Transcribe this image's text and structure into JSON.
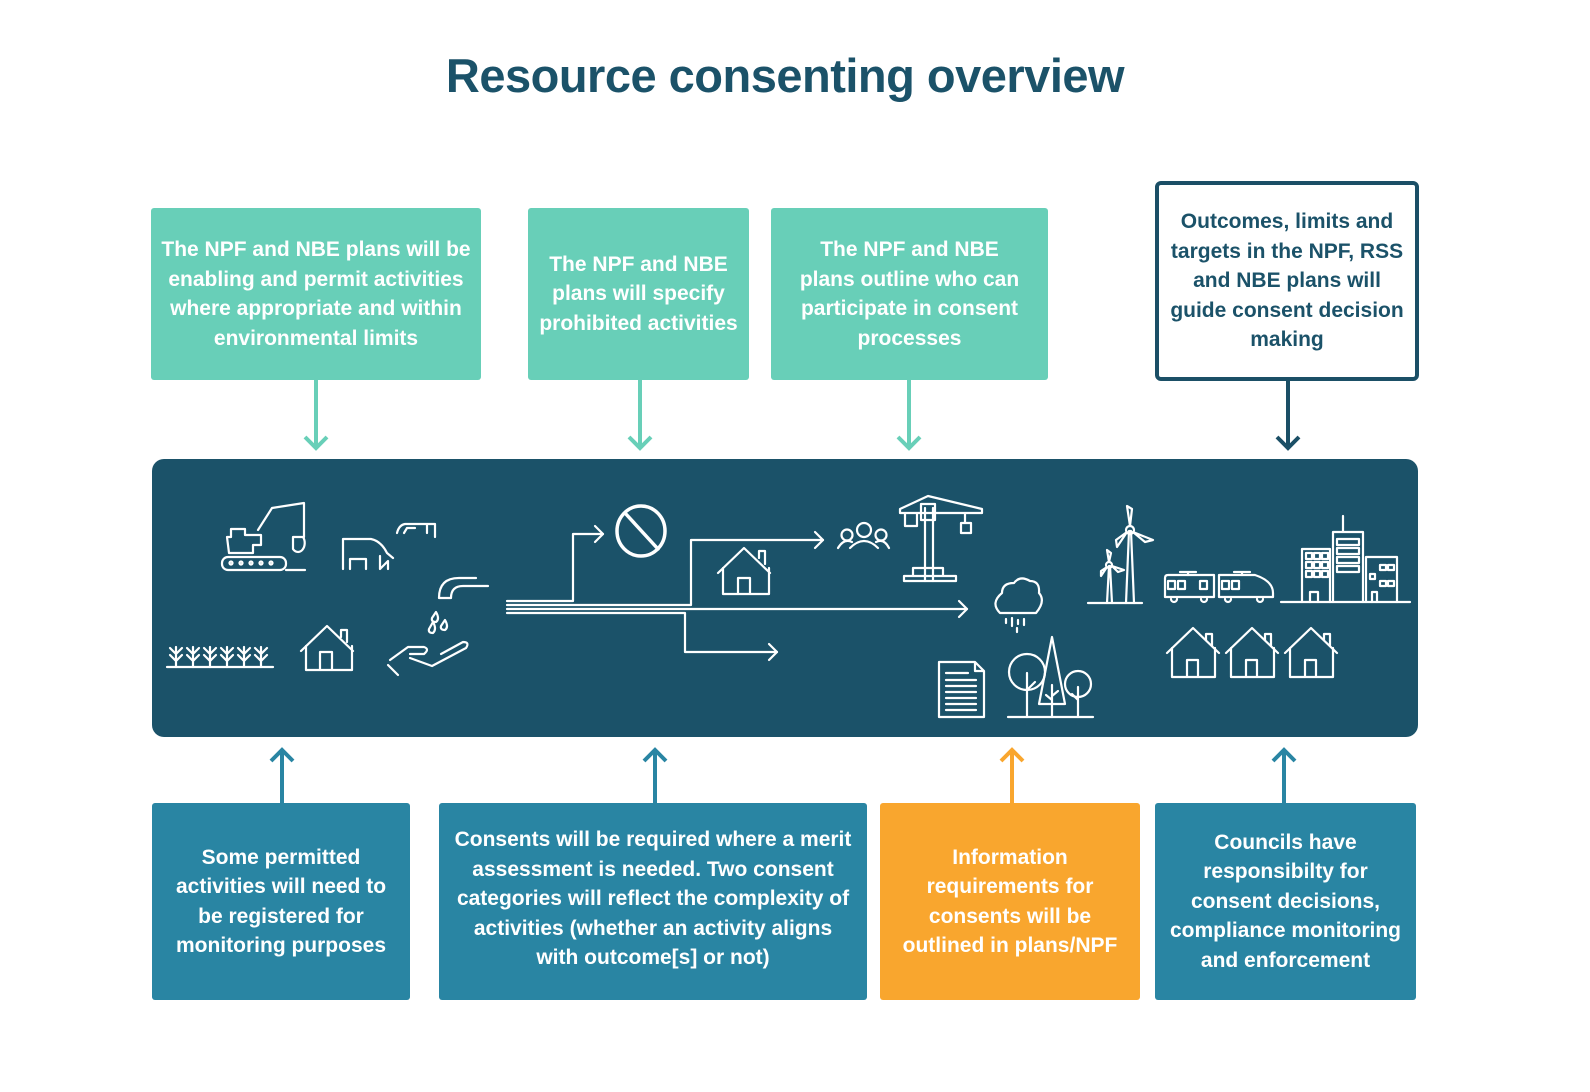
{
  "title": "Resource consenting overview",
  "colors": {
    "title": "#1b5269",
    "band": "#1b5269",
    "mint": "#68cfb8",
    "blue": "#2985a3",
    "orange": "#f9a62e",
    "outline": "#1b4f66"
  },
  "top_boxes": [
    {
      "text": "The NPF and NBE plans will be enabling and permit activities where appropriate and within environmental limits"
    },
    {
      "text": "The NPF and NBE plans will specify prohibited activities"
    },
    {
      "text": "The NPF and NBE plans outline who can participate in consent processes"
    },
    {
      "text": "Outcomes, limits and targets in the NPF, RSS and NBE plans will guide consent decision making"
    }
  ],
  "bottom_boxes": [
    {
      "text": "Some permitted activities will need to be registered for monitoring purposes"
    },
    {
      "text": "Consents will be required where a merit assessment is needed. Two consent categories will reflect the complexity of activities (whether an activity aligns with outcome[s] or not)"
    },
    {
      "text": "Information requirements for consents will be outlined in plans/NPF"
    },
    {
      "text": "Councils have responsibilty for consent decisions, compliance monitoring and enforcement"
    }
  ],
  "icons": [
    "excavator-icon",
    "cows-icon",
    "crops-icon",
    "house-icon",
    "tap-hand-icon",
    "prohibited-icon",
    "people-icon",
    "crane-icon",
    "cloud-rain-icon",
    "document-icon",
    "trees-icon",
    "wind-turbines-icon",
    "train-icon",
    "city-buildings-icon",
    "houses-icon"
  ]
}
